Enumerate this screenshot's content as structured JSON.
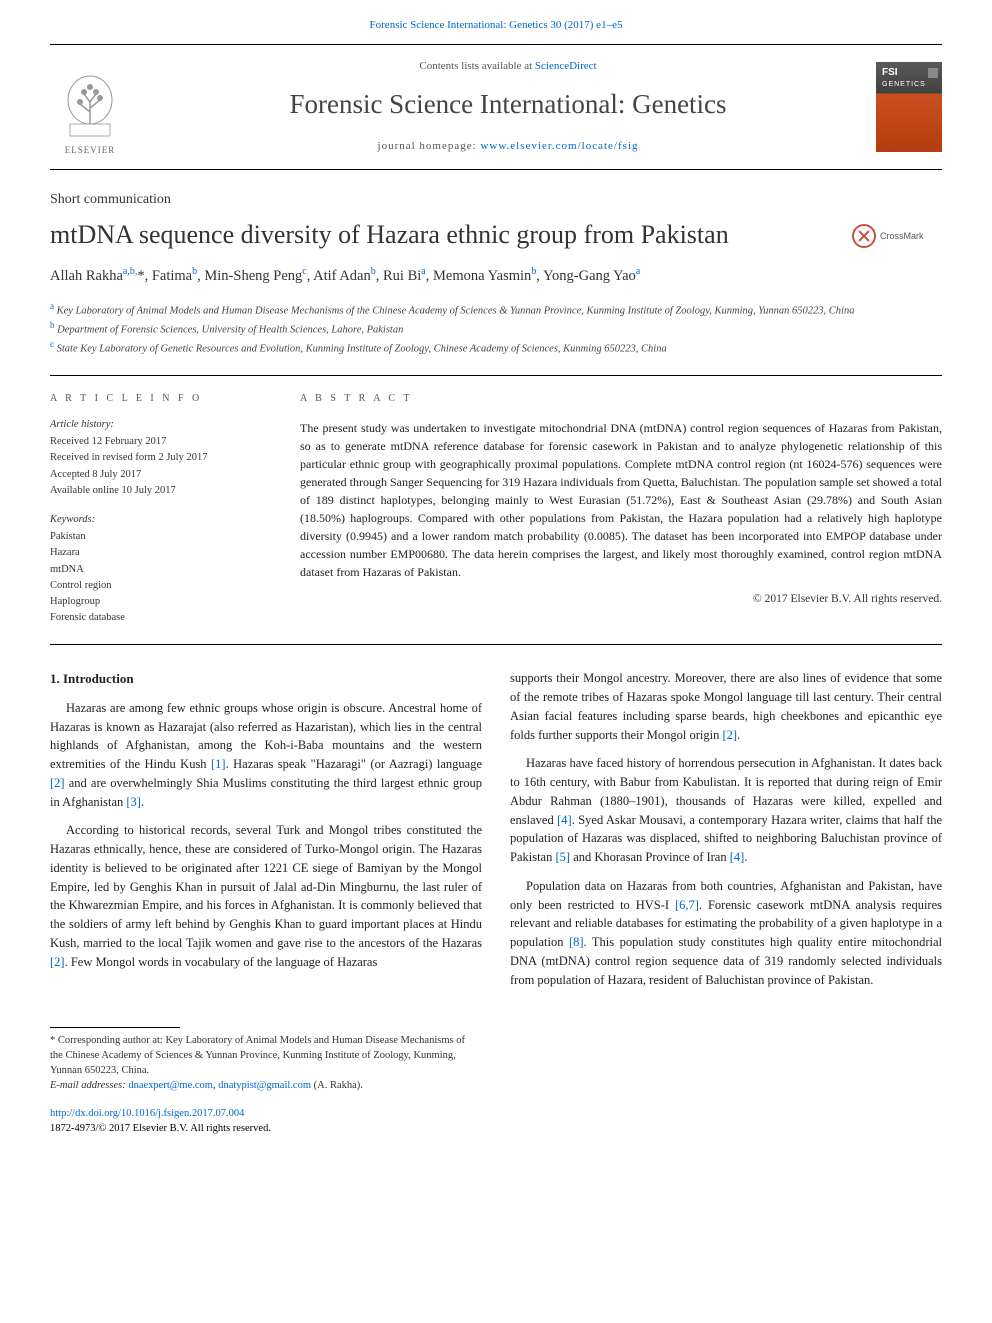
{
  "top_citation": "Forensic Science International: Genetics 30 (2017) e1–e5",
  "header": {
    "publisher": "ELSEVIER",
    "contents_prefix": "Contents lists available at",
    "contents_link": "ScienceDirect",
    "journal_title": "Forensic Science International: Genetics",
    "homepage_prefix": "journal homepage:",
    "homepage_url": "www.elsevier.com/locate/fsig",
    "cover_fsi": "FSI",
    "cover_gen": "GENETICS"
  },
  "article": {
    "type": "Short communication",
    "title": "mtDNA sequence diversity of Hazara ethnic group from Pakistan",
    "crossmark": "CrossMark"
  },
  "authors_html": "Allah Rakha<sup>a,b,</sup>*, Fatima<sup>b</sup>, Min-Sheng Peng<sup>c</sup>, Atif Adan<sup>b</sup>, Rui Bi<sup>a</sup>, Memona Yasmin<sup>b</sup>, Yong-Gang Yao<sup>a</sup>",
  "affiliations": [
    {
      "key": "a",
      "text": "Key Laboratory of Animal Models and Human Disease Mechanisms of the Chinese Academy of Sciences & Yunnan Province, Kunming Institute of Zoology, Kunming, Yunnan 650223, China"
    },
    {
      "key": "b",
      "text": "Department of Forensic Sciences, University of Health Sciences, Lahore, Pakistan"
    },
    {
      "key": "c",
      "text": "State Key Laboratory of Genetic Resources and Evolution, Kunming Institute of Zoology, Chinese Academy of Sciences, Kunming 650223, China"
    }
  ],
  "info": {
    "heading": "A R T I C L E  I N F O",
    "history_label": "Article history:",
    "history": [
      "Received 12 February 2017",
      "Received in revised form 2 July 2017",
      "Accepted 8 July 2017",
      "Available online 10 July 2017"
    ],
    "keywords_label": "Keywords:",
    "keywords": [
      "Pakistan",
      "Hazara",
      "mtDNA",
      "Control region",
      "Haplogroup",
      "Forensic database"
    ]
  },
  "abstract": {
    "heading": "A B S T R A C T",
    "text": "The present study was undertaken to investigate mitochondrial DNA (mtDNA) control region sequences of Hazaras from Pakistan, so as to generate mtDNA reference database for forensic casework in Pakistan and to analyze phylogenetic relationship of this particular ethnic group with geographically proximal populations. Complete mtDNA control region (nt 16024-576) sequences were generated through Sanger Sequencing for 319 Hazara individuals from Quetta, Baluchistan. The population sample set showed a total of 189 distinct haplotypes, belonging mainly to West Eurasian (51.72%), East & Southeast Asian (29.78%) and South Asian (18.50%) haplogroups. Compared with other populations from Pakistan, the Hazara population had a relatively high haplotype diversity (0.9945) and a lower random match probability (0.0085). The dataset has been incorporated into EMPOP database under accession number EMP00680. The data herein comprises the largest, and likely most thoroughly examined, control region mtDNA dataset from Hazaras of Pakistan.",
    "copyright": "© 2017 Elsevier B.V. All rights reserved."
  },
  "intro": {
    "heading": "1. Introduction",
    "p1_a": "Hazaras are among few ethnic groups whose origin is obscure. Ancestral home of Hazaras is known as Hazarajat (also referred as Hazaristan), which lies in the central highlands of Afghanistan, among the Koh-i-Baba mountains and the western extremities of the Hindu Kush ",
    "ref1": "[1]",
    "p1_b": ". Hazaras speak \"Hazaragi\" (or Aazragi) language ",
    "ref2a": "[2]",
    "p1_c": " and are overwhelmingly Shia Muslims constituting the third largest ethnic group in Afghanistan ",
    "ref3": "[3]",
    "p1_d": ".",
    "p2_a": "According to historical records, several Turk and Mongol tribes constituted the Hazaras ethnically, hence, these are considered of Turko-Mongol origin. The Hazaras identity is believed to be originated after 1221 CE siege of Bamiyan by the Mongol Empire, led by Genghis Khan in pursuit of Jalal ad-Din Mingburnu, the last ruler of the Khwarezmian Empire, and his forces in Afghanistan. It is commonly believed that the soldiers of army left behind by Genghis Khan to guard important places at Hindu Kush, married to the local Tajik women and gave rise to the ancestors of the Hazaras ",
    "ref2b": "[2]",
    "p2_b": ". Few Mongol words in vocabulary of the language of Hazaras",
    "p3_a": "supports their Mongol ancestry. Moreover, there are also lines of evidence that some of the remote tribes of Hazaras spoke Mongol language till last century. Their central Asian facial features including sparse beards, high cheekbones and epicanthic eye folds further supports their Mongol origin ",
    "ref2c": "[2]",
    "p3_b": ".",
    "p4_a": "Hazaras have faced history of horrendous persecution in Afghanistan. It dates back to 16th century, with Babur from Kabulistan. It is reported that during reign of Emir Abdur Rahman (1880–1901), thousands of Hazaras were killed, expelled and enslaved ",
    "ref4a": "[4]",
    "p4_b": ". Syed Askar Mousavi, a contemporary Hazara writer, claims that half the population of Hazaras was displaced, shifted to neighboring Baluchistan province of Pakistan ",
    "ref5": "[5]",
    "p4_c": " and Khorasan Province of Iran ",
    "ref4b": "[4]",
    "p4_d": ".",
    "p5_a": "Population data on Hazaras from both countries, Afghanistan and Pakistan, have only been restricted to HVS-I ",
    "ref67": "[6,7]",
    "p5_b": ". Forensic casework mtDNA analysis requires relevant and reliable databases for estimating the probability of a given haplotype in a population ",
    "ref8": "[8]",
    "p5_c": ". This population study constitutes high quality entire mitochondrial DNA (mtDNA) control region sequence data of 319 randomly selected individuals from population of Hazara, resident of Baluchistan province of Pakistan."
  },
  "footnotes": {
    "corr": "* Corresponding author at: Key Laboratory of Animal Models and Human Disease Mechanisms of the Chinese Academy of Sciences & Yunnan Province, Kunming Institute of Zoology, Kunming, Yunnan 650223, China.",
    "email_label": "E-mail addresses:",
    "email1": "dnaexpert@me.com",
    "email_sep": ", ",
    "email2": "dnatypist@gmail.com",
    "email_suffix": " (A. Rakha)."
  },
  "doi": {
    "url": "http://dx.doi.org/10.1016/j.fsigen.2017.07.004",
    "issn": "1872-4973/© 2017 Elsevier B.V. All rights reserved."
  },
  "colors": {
    "link": "#0066cc",
    "text": "#222222",
    "rule": "#000000",
    "cover_top": "#404040",
    "cover_bottom": "#b33d10"
  }
}
